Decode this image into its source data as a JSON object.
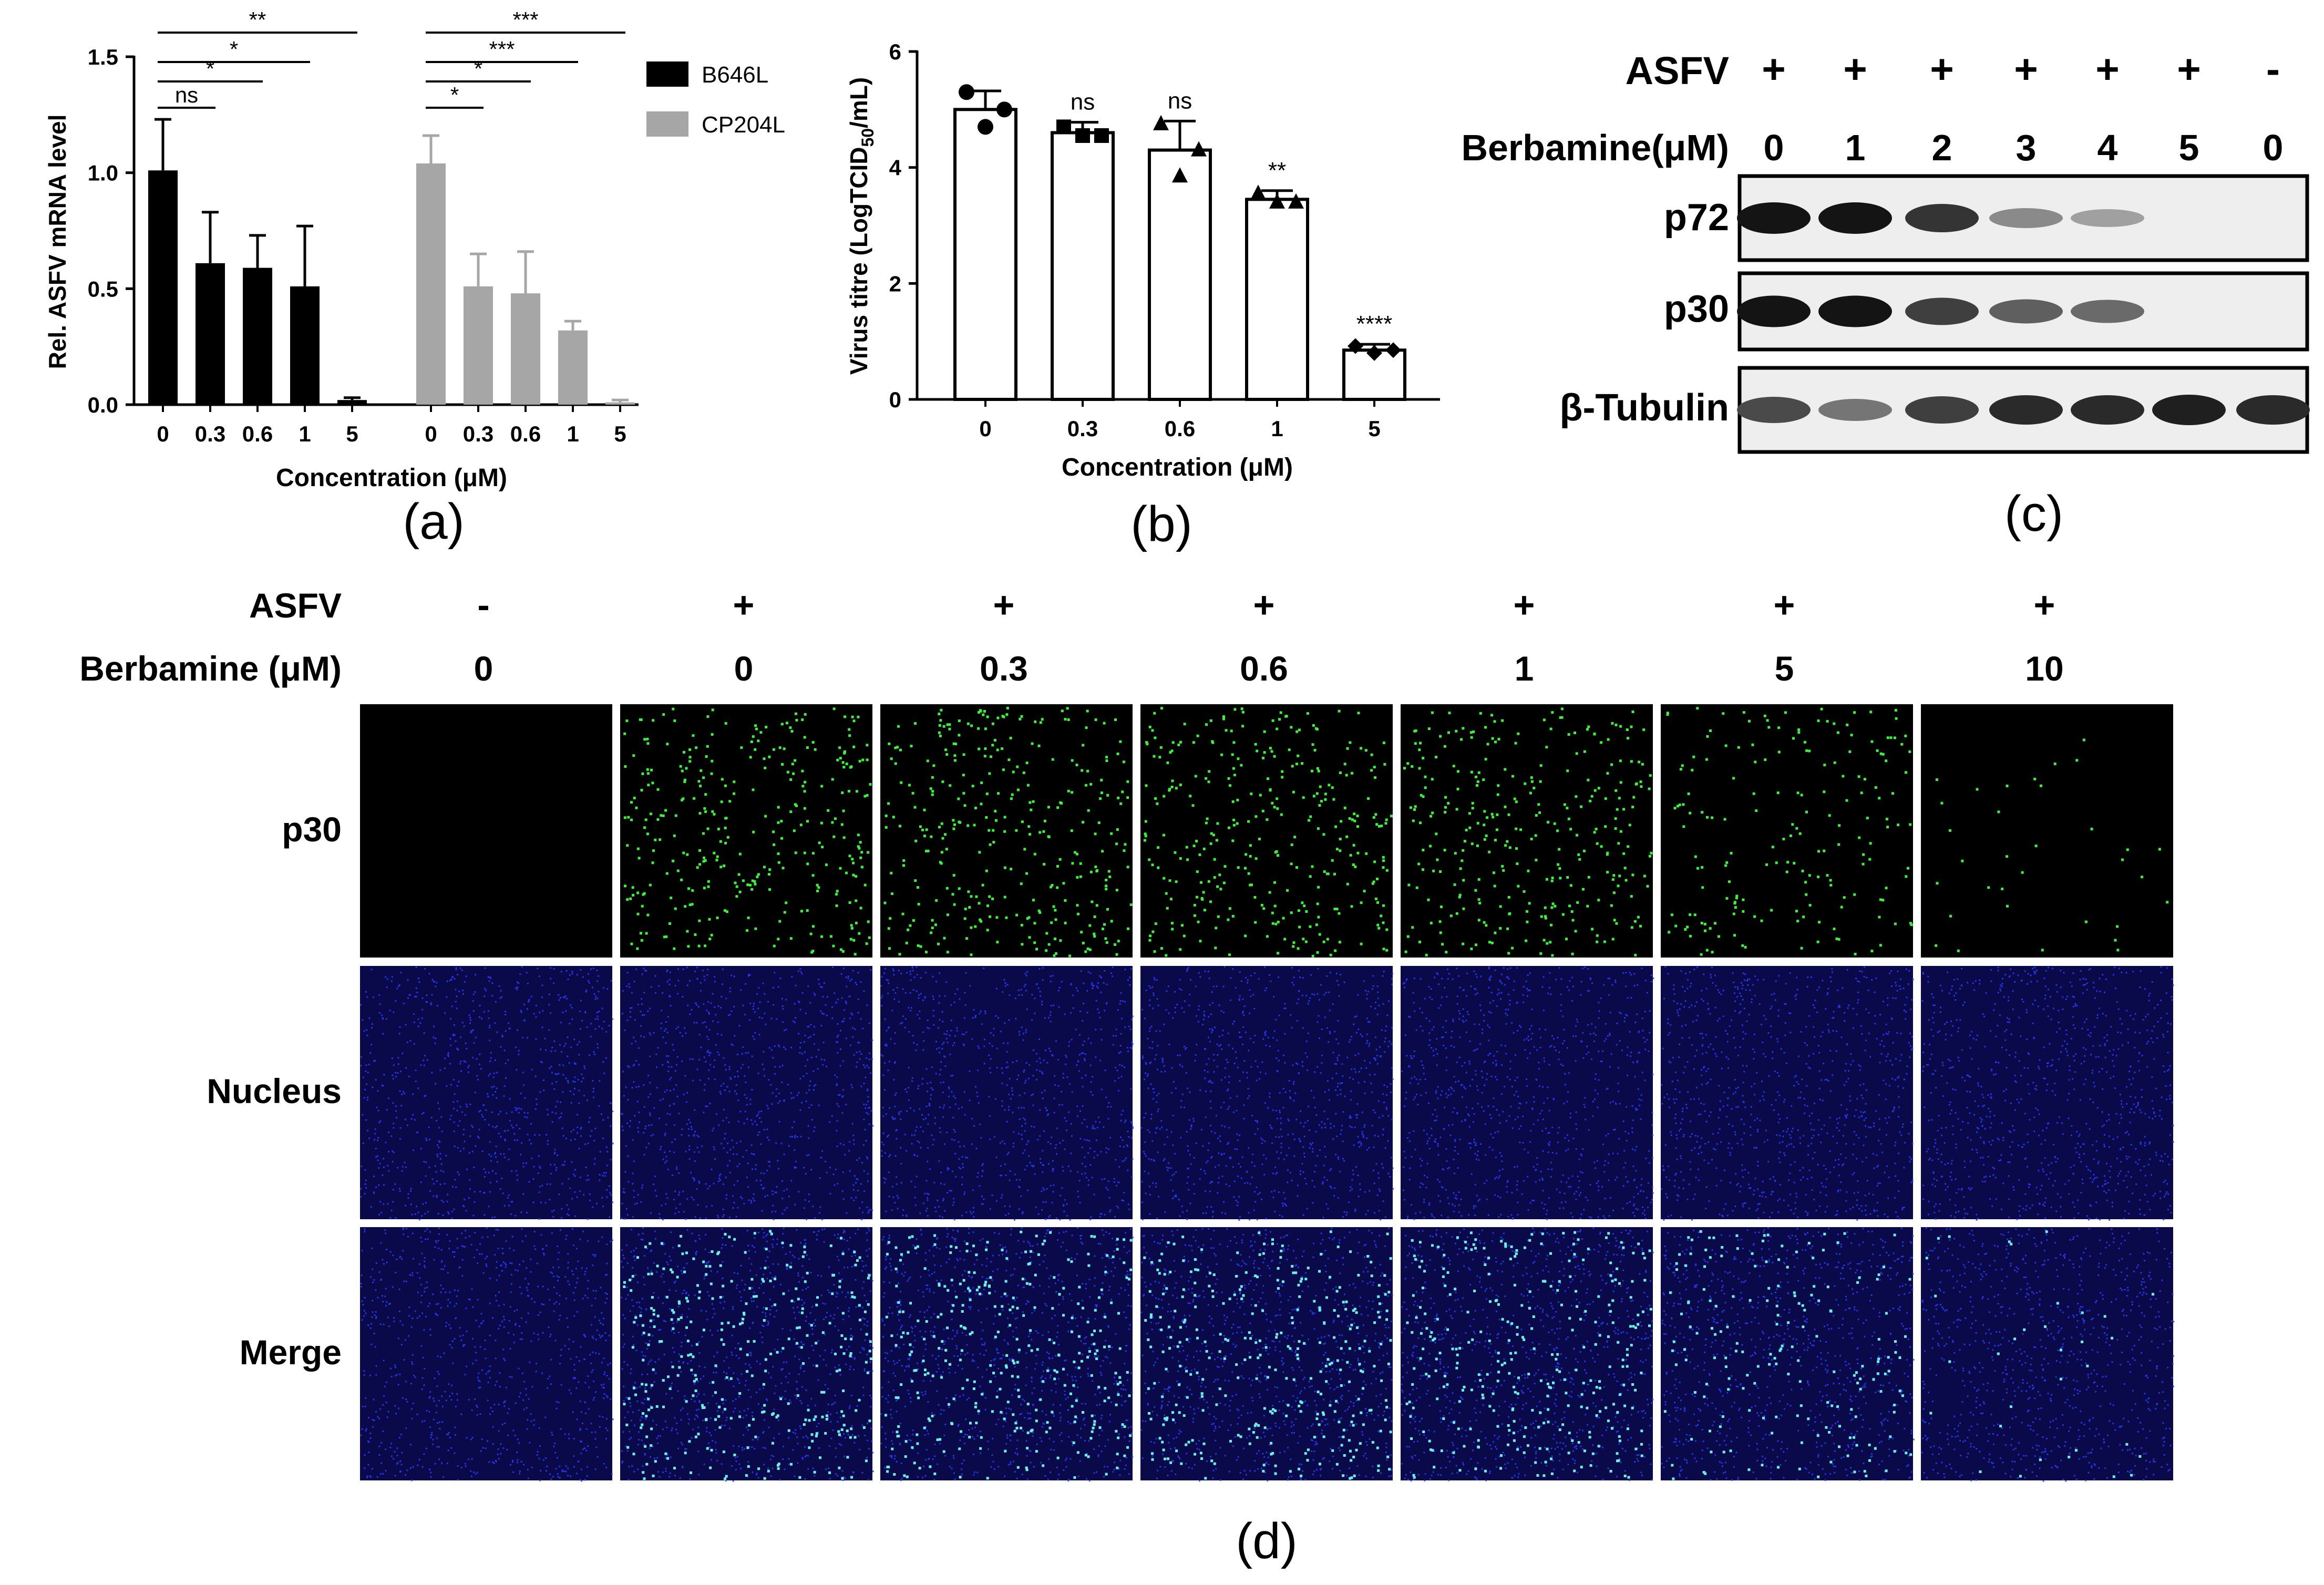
{
  "panel_labels": {
    "a": "(a)",
    "b": "(b)",
    "c": "(c)",
    "d": "(d)"
  },
  "chart_data": [
    {
      "type": "bar",
      "panel": "a",
      "ylabel": "Rel. ASFV mRNA level",
      "xlabel": "Concentration (μM)",
      "ylim": [
        0,
        1.5
      ],
      "yticks": [
        "0.0",
        "0.5",
        "1.0",
        "1.5"
      ],
      "categories": [
        "0",
        "0.3",
        "0.6",
        "1",
        "5"
      ],
      "legend_position": "right",
      "series": [
        {
          "name": "B646L",
          "color": "#000000",
          "values": [
            1.01,
            0.61,
            0.59,
            0.51,
            0.02
          ],
          "errors": [
            0.22,
            0.22,
            0.14,
            0.26,
            0.01
          ]
        },
        {
          "name": "CP204L",
          "color": "#a6a6a6",
          "values": [
            1.04,
            0.51,
            0.48,
            0.32,
            0.01
          ],
          "errors": [
            0.12,
            0.14,
            0.18,
            0.04,
            0.01
          ]
        }
      ],
      "significance": [
        {
          "series": 0,
          "from": 0,
          "to": 1,
          "label": "ns"
        },
        {
          "series": 0,
          "from": 0,
          "to": 2,
          "label": "*"
        },
        {
          "series": 0,
          "from": 0,
          "to": 3,
          "label": "*"
        },
        {
          "series": 0,
          "from": 0,
          "to": 4,
          "label": "**"
        },
        {
          "series": 1,
          "from": 0,
          "to": 1,
          "label": "*"
        },
        {
          "series": 1,
          "from": 0,
          "to": 2,
          "label": "*"
        },
        {
          "series": 1,
          "from": 0,
          "to": 3,
          "label": "***"
        },
        {
          "series": 1,
          "from": 0,
          "to": 4,
          "label": "***"
        }
      ]
    },
    {
      "type": "bar",
      "panel": "b",
      "ylabel_main": "Virus titre (LogTCID",
      "ylabel_sub": "50",
      "ylabel_end": "/mL)",
      "xlabel": "Concentration (μM)",
      "ylim": [
        0,
        6
      ],
      "yticks": [
        "0",
        "2",
        "4",
        "6"
      ],
      "categories": [
        "0",
        "0.3",
        "0.6",
        "1",
        "5"
      ],
      "values": [
        5.0,
        4.6,
        4.3,
        3.45,
        0.85
      ],
      "errors": [
        0.32,
        0.18,
        0.5,
        0.15,
        0.1
      ],
      "points": [
        [
          5.3,
          4.7,
          5.0
        ],
        [
          4.7,
          4.55,
          4.55
        ],
        [
          4.75,
          3.85,
          4.3
        ],
        [
          3.55,
          3.4,
          3.4
        ],
        [
          0.92,
          0.8,
          0.85
        ]
      ],
      "significance": [
        "",
        "ns",
        "ns",
        "**",
        "****"
      ]
    }
  ],
  "western_blot": {
    "row_labels": [
      "ASFV",
      "Berbamine(μM)"
    ],
    "asfv": [
      "+",
      "+",
      "+",
      "+",
      "+",
      "+",
      "-"
    ],
    "berbamine": [
      "0",
      "1",
      "2",
      "3",
      "4",
      "5",
      "0"
    ],
    "bands": [
      {
        "label": "p72",
        "intensity": [
          1.0,
          1.0,
          0.85,
          0.45,
          0.35,
          0,
          0
        ]
      },
      {
        "label": "p30",
        "intensity": [
          1.0,
          1.0,
          0.8,
          0.65,
          0.6,
          0,
          0
        ]
      },
      {
        "label": "β-Tubulin",
        "intensity": [
          0.75,
          0.55,
          0.8,
          0.9,
          0.9,
          0.95,
          0.9
        ]
      }
    ]
  },
  "fluorescence": {
    "row_labels": [
      "ASFV",
      "Berbamine (μM)"
    ],
    "asfv": [
      "-",
      "+",
      "+",
      "+",
      "+",
      "+",
      "+"
    ],
    "berbamine": [
      "0",
      "0",
      "0.3",
      "0.6",
      "1",
      "5",
      "10"
    ],
    "channels": [
      "p30",
      "Nucleus",
      "Merge"
    ],
    "p30_density": [
      0,
      1.0,
      1.0,
      1.0,
      0.95,
      0.55,
      0.1
    ],
    "colors": {
      "green": "#3cf03c",
      "blue": "#2a3cff",
      "bg": "#000000",
      "nucleus_bg": "#0a0a4a"
    }
  }
}
